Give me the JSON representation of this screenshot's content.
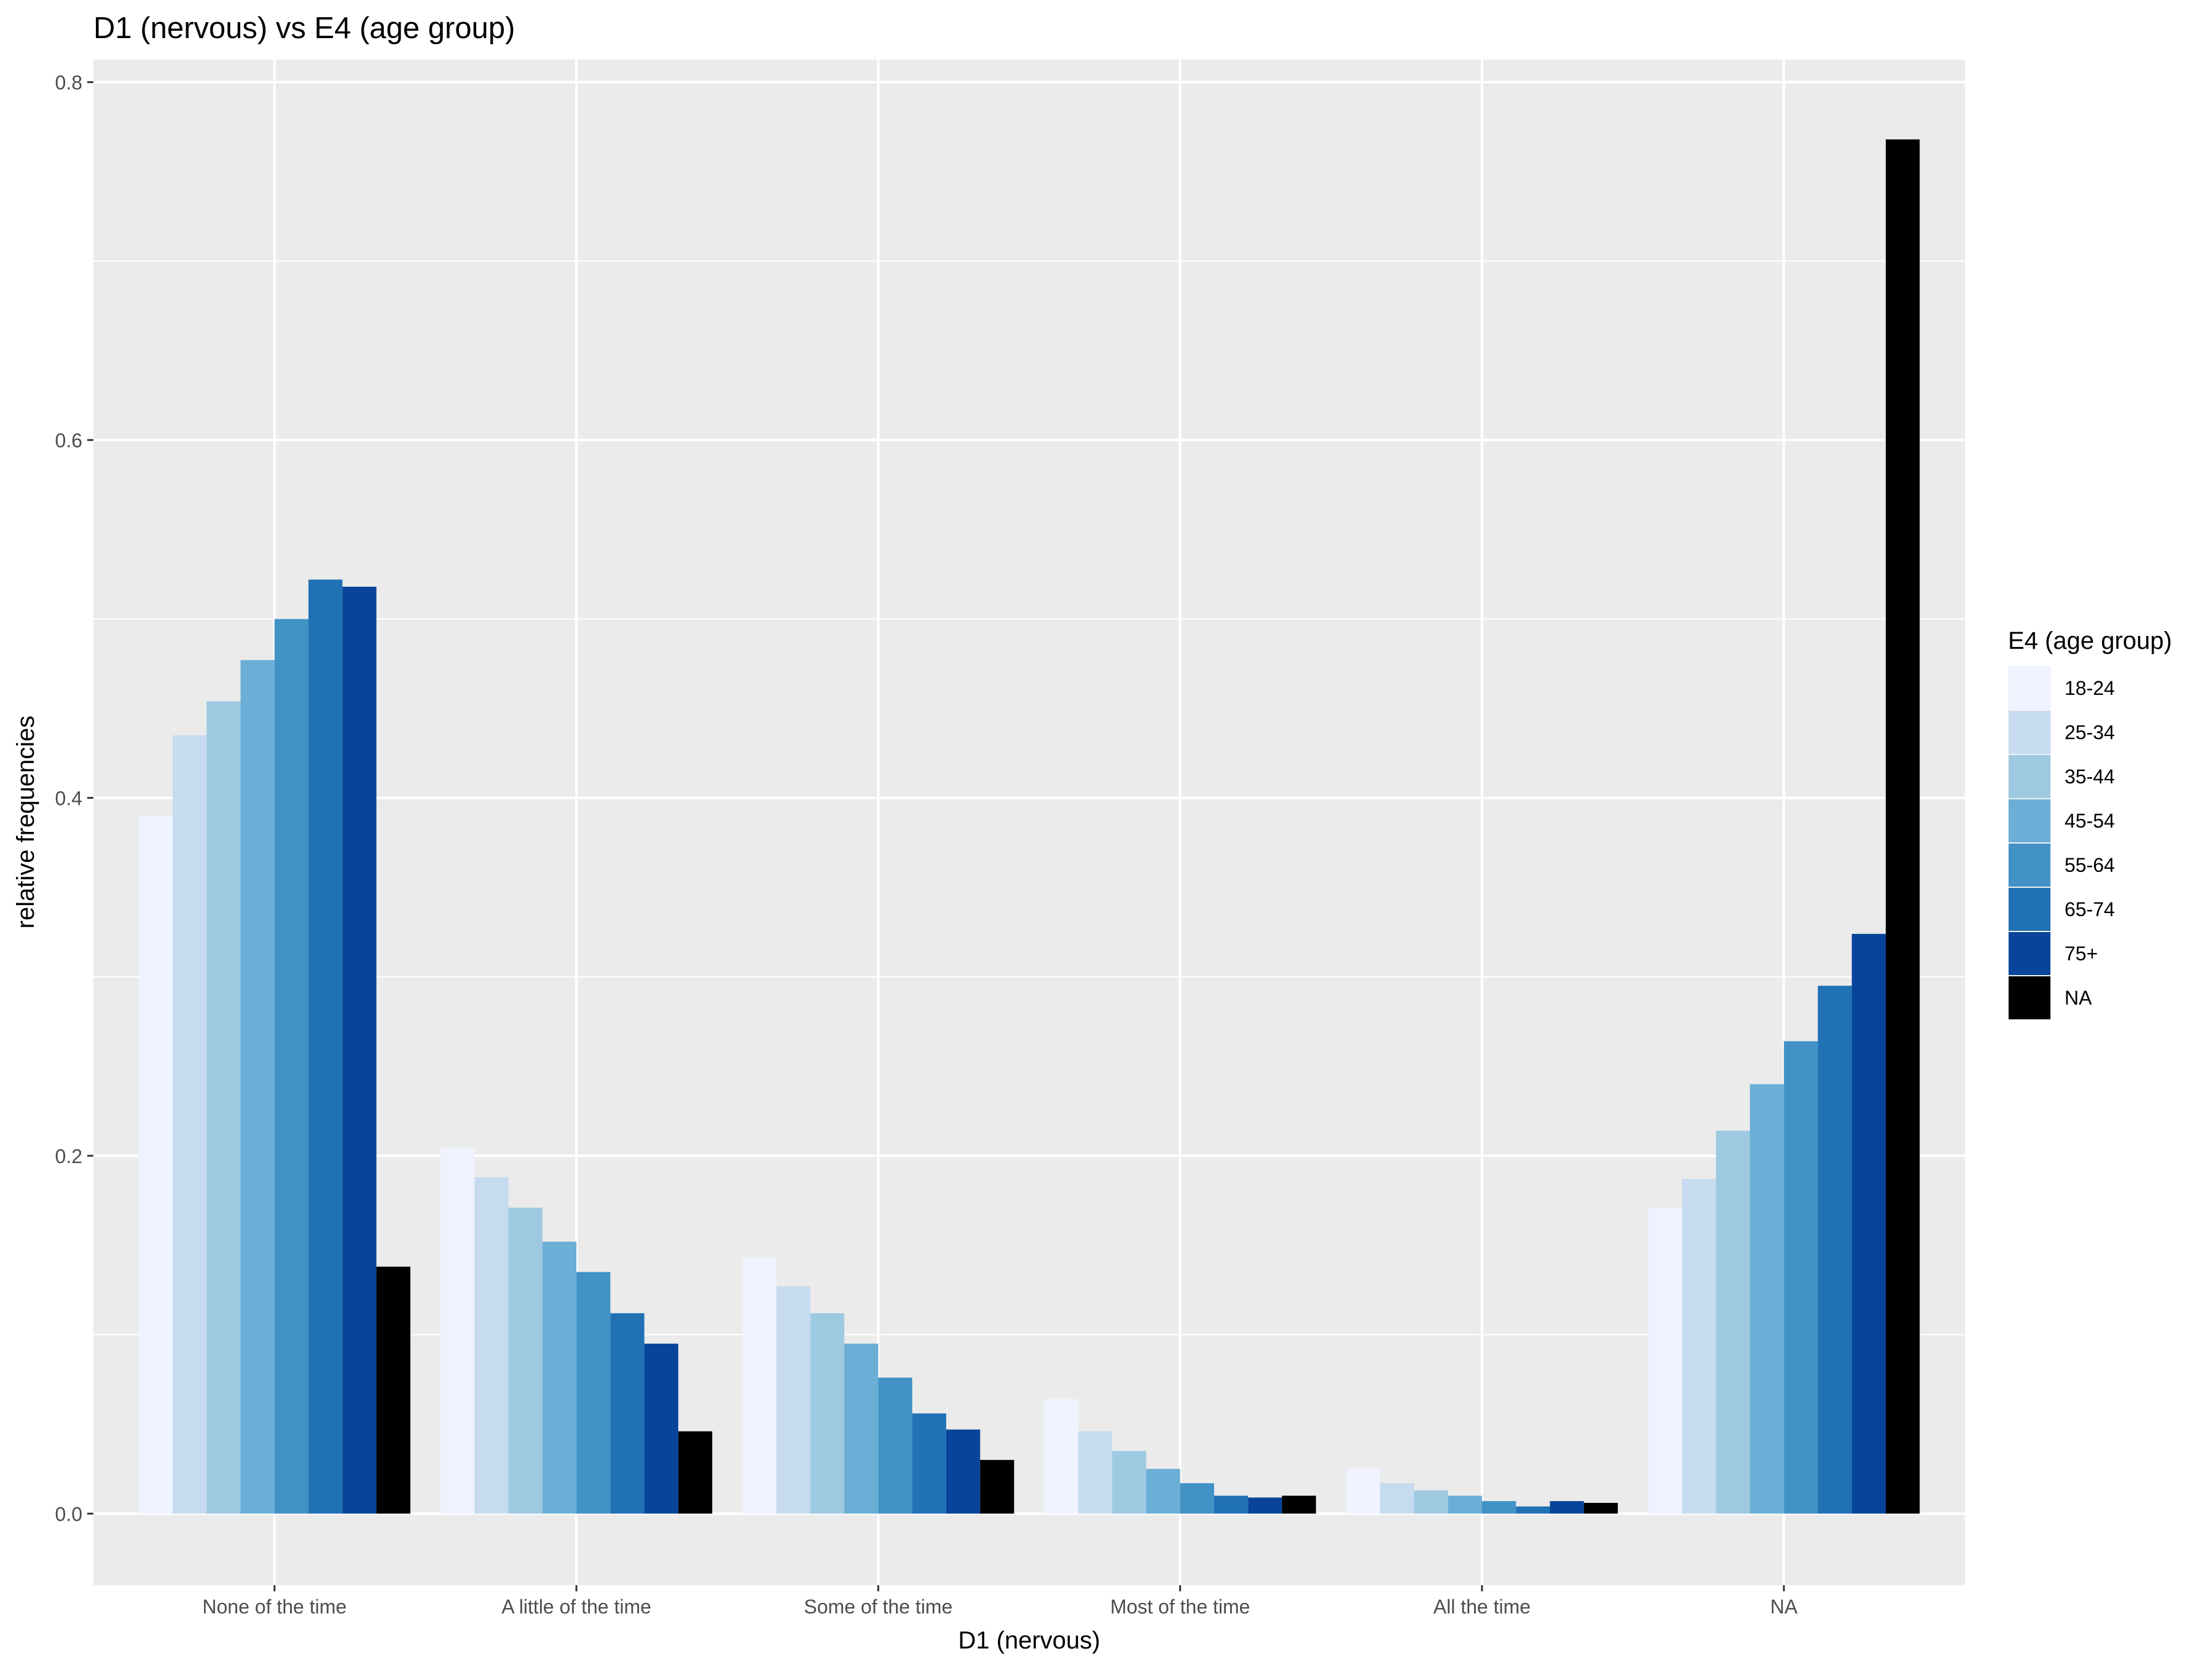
{
  "chart_data": {
    "type": "bar",
    "title": "D1 (nervous) vs E4 (age group)",
    "xlabel": "D1 (nervous)",
    "ylabel": "relative frequencies",
    "ylim": [
      -0.04,
      0.8126
    ],
    "yticks": [
      0.0,
      0.2,
      0.4,
      0.6,
      0.8
    ],
    "ytick_labels": [
      "0.0",
      "0.2",
      "0.4",
      "0.6",
      "0.8"
    ],
    "grid": true,
    "legend": {
      "title": "E4 (age group)",
      "position": "right"
    },
    "categories": [
      "None of the time",
      "A little of the time",
      "Some of the time",
      "Most of the time",
      "All the time",
      "NA"
    ],
    "series": [
      {
        "name": "18-24",
        "color": "#eff3ff",
        "values": [
          0.39,
          0.204,
          0.143,
          0.064,
          0.025,
          0.171
        ]
      },
      {
        "name": "25-34",
        "color": "#c6dbef",
        "values": [
          0.435,
          0.188,
          0.127,
          0.046,
          0.017,
          0.187
        ]
      },
      {
        "name": "35-44",
        "color": "#9ecae1",
        "values": [
          0.454,
          0.171,
          0.112,
          0.035,
          0.013,
          0.214
        ]
      },
      {
        "name": "45-54",
        "color": "#6baed6",
        "values": [
          0.477,
          0.152,
          0.095,
          0.025,
          0.01,
          0.24
        ]
      },
      {
        "name": "55-64",
        "color": "#4292c6",
        "values": [
          0.5,
          0.135,
          0.076,
          0.017,
          0.007,
          0.264
        ]
      },
      {
        "name": "65-74",
        "color": "#2171b5",
        "values": [
          0.522,
          0.112,
          0.056,
          0.01,
          0.004,
          0.295
        ]
      },
      {
        "name": "75+",
        "color": "#08459a",
        "values": [
          0.518,
          0.095,
          0.047,
          0.009,
          0.007,
          0.324
        ]
      },
      {
        "name": "NA",
        "color": "#000000",
        "values": [
          0.138,
          0.046,
          0.03,
          0.01,
          0.006,
          0.768
        ]
      }
    ]
  }
}
